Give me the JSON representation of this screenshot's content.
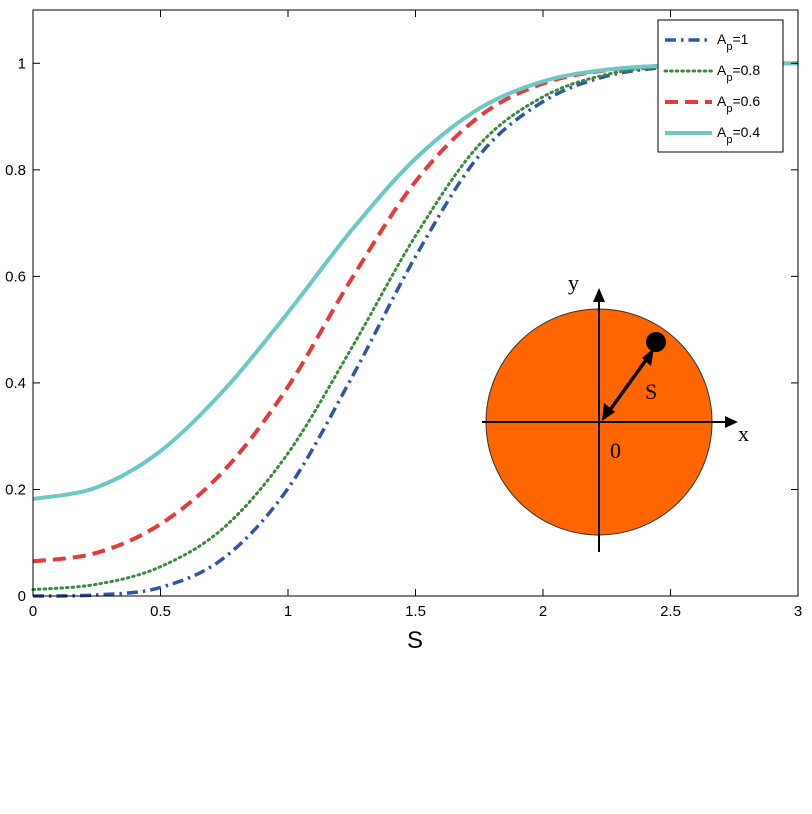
{
  "chart_data": {
    "type": "line",
    "xlabel": "S",
    "ylabel": "",
    "xlim": [
      0,
      3
    ],
    "ylim": [
      0,
      1.1
    ],
    "xticks": [
      "0",
      "0.5",
      "1",
      "1.5",
      "2",
      "2.5",
      "3"
    ],
    "yticks": [
      "0",
      "0.2",
      "0.4",
      "0.6",
      "0.8",
      "1"
    ],
    "grid": false,
    "legend_position": "top-right",
    "series": [
      {
        "name_main": "A",
        "name_sub": "p",
        "name_suffix": "=1",
        "color": "#2f55a8",
        "style": "dashdot",
        "x": [
          0,
          0.25,
          0.5,
          0.75,
          1,
          1.25,
          1.5,
          1.75,
          2,
          2.25,
          2.5,
          2.75,
          3
        ],
        "y": [
          0.0,
          0.002,
          0.016,
          0.072,
          0.202,
          0.41,
          0.637,
          0.827,
          0.928,
          0.976,
          0.993,
          0.998,
          1.0
        ]
      },
      {
        "name_main": "A",
        "name_sub": "p",
        "name_suffix": "=0.8",
        "color": "#3a8a3a",
        "style": "dotted",
        "x": [
          0,
          0.25,
          0.5,
          0.75,
          1,
          1.25,
          1.5,
          1.75,
          2,
          2.25,
          2.5,
          2.75,
          3
        ],
        "y": [
          0.012,
          0.022,
          0.055,
          0.129,
          0.268,
          0.466,
          0.676,
          0.847,
          0.937,
          0.979,
          0.994,
          0.999,
          1.0
        ]
      },
      {
        "name_main": "A",
        "name_sub": "p",
        "name_suffix": "=0.6",
        "color": "#e63a3a",
        "style": "dashed",
        "x": [
          0,
          0.25,
          0.5,
          0.75,
          1,
          1.25,
          1.5,
          1.75,
          2,
          2.25,
          2.5,
          2.75,
          3
        ],
        "y": [
          0.065,
          0.081,
          0.135,
          0.236,
          0.393,
          0.596,
          0.778,
          0.9,
          0.962,
          0.987,
          0.996,
          0.999,
          1.0
        ]
      },
      {
        "name_main": "A",
        "name_sub": "p",
        "name_suffix": "=0.4",
        "color": "#6cc8c4",
        "style": "solid",
        "x": [
          0,
          0.25,
          0.5,
          0.75,
          1,
          1.25,
          1.5,
          1.75,
          2,
          2.25,
          2.5,
          2.75,
          3
        ],
        "y": [
          0.182,
          0.204,
          0.272,
          0.387,
          0.532,
          0.687,
          0.821,
          0.915,
          0.966,
          0.988,
          0.996,
          0.999,
          1.0
        ]
      }
    ],
    "inset": {
      "fill": "#ff6600",
      "labels": {
        "y_axis": "y",
        "x_axis": "x",
        "origin": "0",
        "radius": "S"
      }
    }
  }
}
